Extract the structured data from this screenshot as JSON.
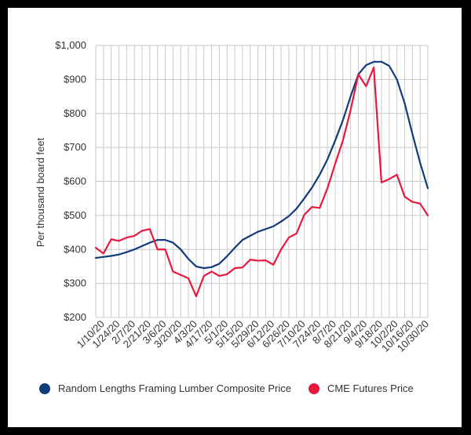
{
  "chart_data": {
    "type": "line",
    "title": "",
    "xlabel": "",
    "ylabel": "Per thousand board feet",
    "ylim": [
      200,
      1000
    ],
    "yticks": [
      200,
      300,
      400,
      500,
      600,
      700,
      800,
      900,
      1000
    ],
    "ytick_labels": [
      "$200",
      "$300",
      "$400",
      "$500",
      "$600",
      "$700",
      "$800",
      "$900",
      "$1,000"
    ],
    "x_start": "1/3/20",
    "x_step_days": 7,
    "xtick_labels": [
      "1/10/20",
      "1/24/20",
      "2/7/20",
      "2/21/20",
      "3/6/20",
      "3/20/20",
      "4/3/20",
      "4/17/20",
      "5/1/20",
      "5/15/20",
      "5/29/20",
      "6/12/20",
      "6/26/20",
      "7/10/20",
      "7/24/20",
      "8/7/20",
      "8/21/20",
      "9/4/20",
      "9/18/20",
      "10/2/20",
      "10/16/20",
      "10/30/20"
    ],
    "grid": true,
    "legend_position": "bottom",
    "series": [
      {
        "name": "Random Lengths Framing Lumber Composite Price",
        "color": "#123b7a",
        "values": [
          375,
          378,
          381,
          385,
          392,
          400,
          410,
          420,
          428,
          428,
          420,
          400,
          372,
          350,
          345,
          348,
          358,
          380,
          405,
          428,
          440,
          452,
          460,
          468,
          482,
          498,
          520,
          550,
          582,
          620,
          665,
          720,
          780,
          850,
          915,
          942,
          952,
          952,
          940,
          900,
          830,
          740,
          655,
          580
        ]
      },
      {
        "name": "CME Futures Price",
        "color": "#e8183f",
        "values": [
          405,
          388,
          430,
          425,
          435,
          440,
          455,
          460,
          400,
          400,
          335,
          325,
          315,
          262,
          322,
          335,
          322,
          327,
          345,
          347,
          370,
          367,
          368,
          355,
          400,
          435,
          447,
          502,
          525,
          522,
          580,
          652,
          720,
          810,
          915,
          880,
          935,
          597,
          607,
          620,
          555,
          540,
          535,
          500
        ]
      }
    ]
  }
}
